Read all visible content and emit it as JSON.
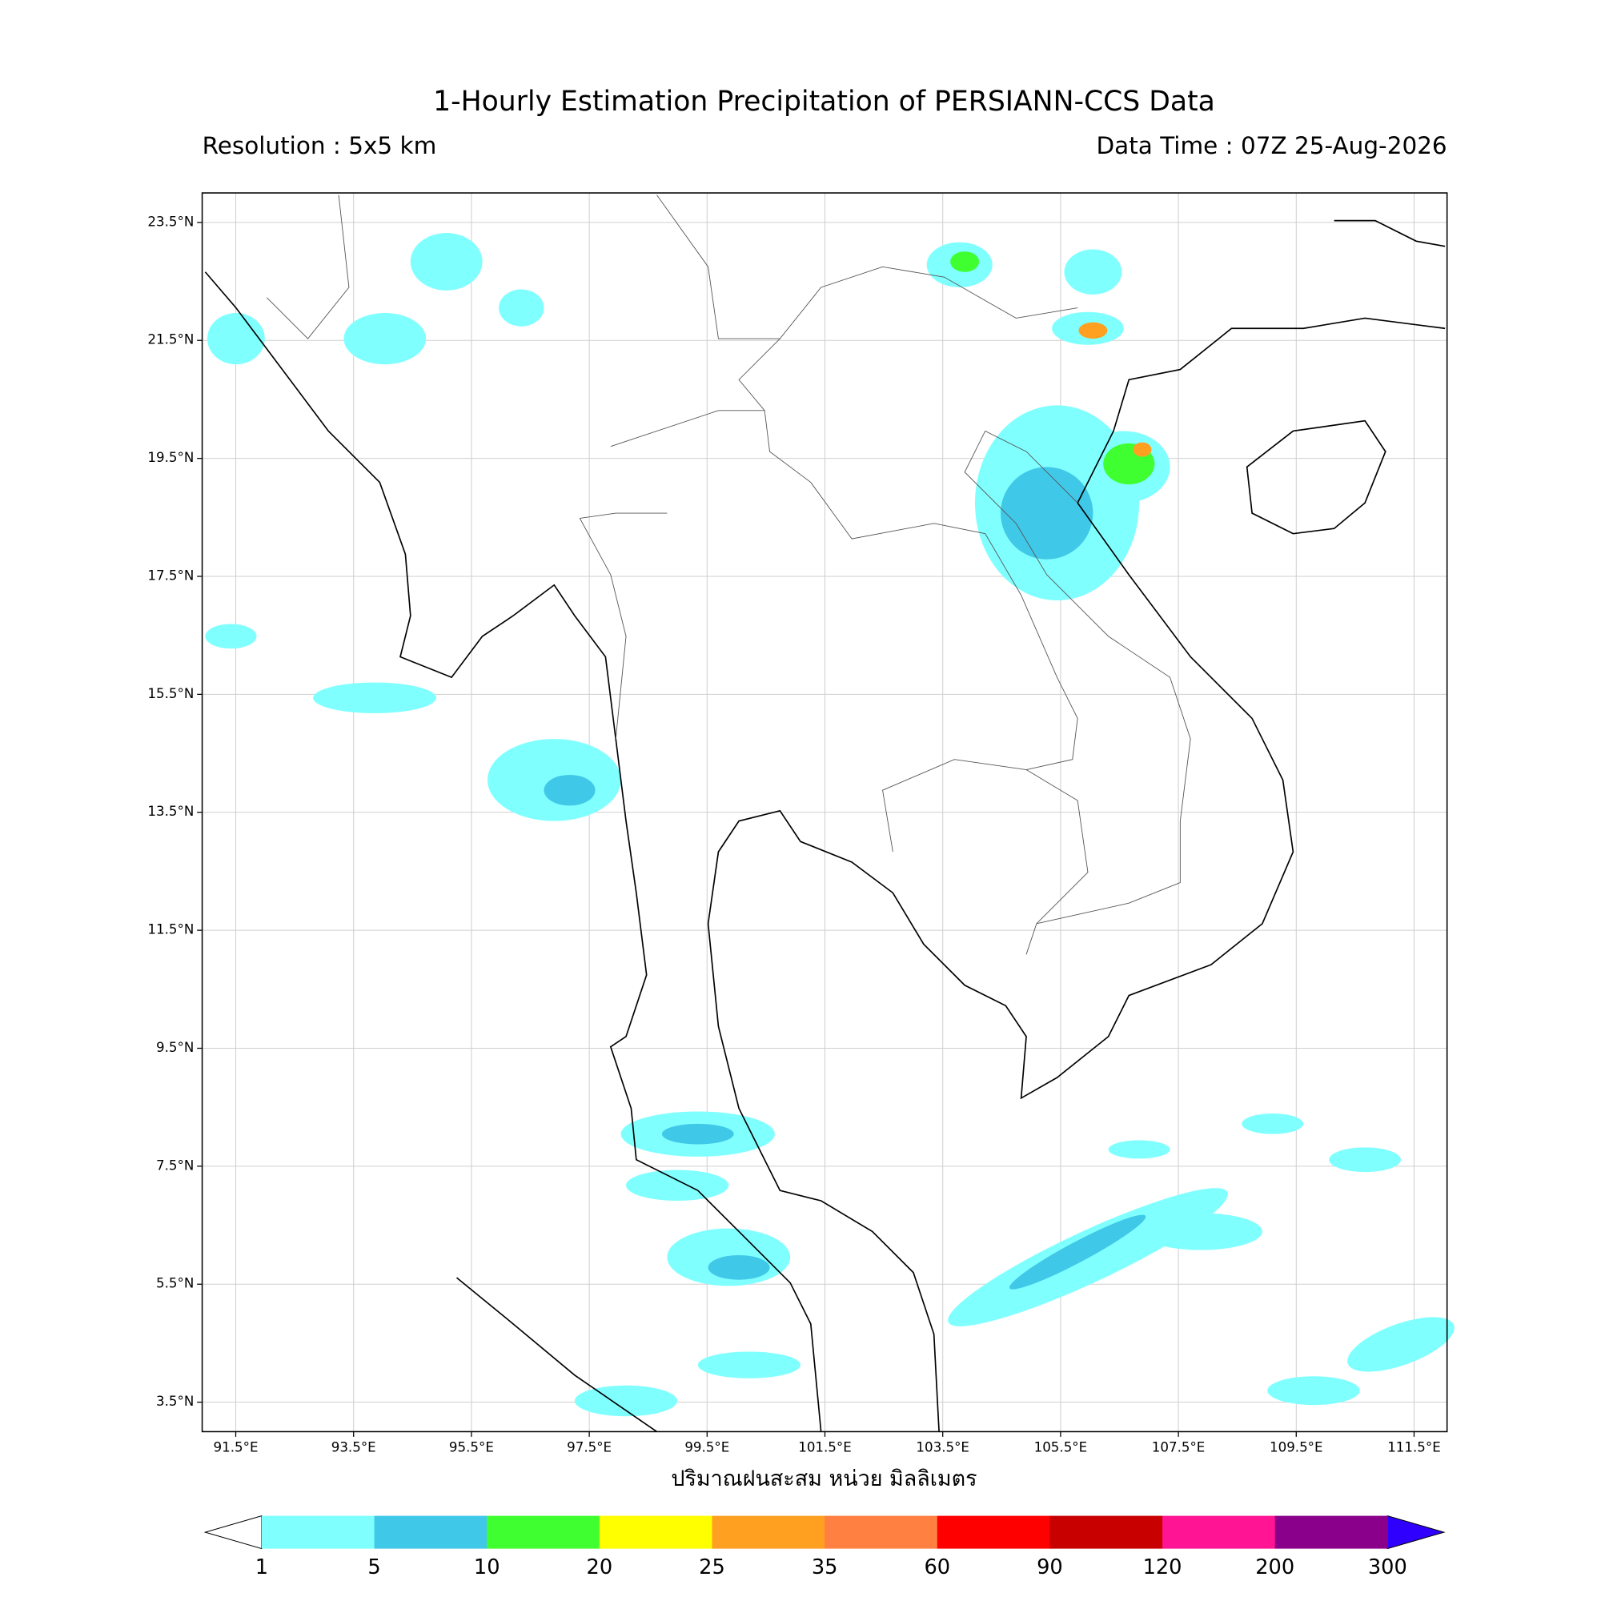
{
  "title": "1-Hourly Estimation Precipitation of PERSIANN-CCS Data",
  "resolution": "Resolution : 5x5 km",
  "data_time": "Data Time : 07Z 25-Aug-2026",
  "map": {
    "xlim": [
      90.93,
      112.06
    ],
    "ylim": [
      3.0,
      24.0
    ],
    "xticks": [
      {
        "value": 91.5,
        "label": "91.5°E"
      },
      {
        "value": 93.5,
        "label": "93.5°E"
      },
      {
        "value": 95.5,
        "label": "95.5°E"
      },
      {
        "value": 97.5,
        "label": "97.5°E"
      },
      {
        "value": 99.5,
        "label": "99.5°E"
      },
      {
        "value": 101.5,
        "label": "101.5°E"
      },
      {
        "value": 103.5,
        "label": "103.5°E"
      },
      {
        "value": 105.5,
        "label": "105.5°E"
      },
      {
        "value": 107.5,
        "label": "107.5°E"
      },
      {
        "value": 109.5,
        "label": "109.5°E"
      },
      {
        "value": 111.5,
        "label": "111.5°E"
      }
    ],
    "yticks": [
      {
        "value": 3.5,
        "label": "3.5°N"
      },
      {
        "value": 5.5,
        "label": "5.5°N"
      },
      {
        "value": 7.5,
        "label": "7.5°N"
      },
      {
        "value": 9.5,
        "label": "9.5°N"
      },
      {
        "value": 11.5,
        "label": "11.5°N"
      },
      {
        "value": 13.5,
        "label": "13.5°N"
      },
      {
        "value": 15.5,
        "label": "15.5°N"
      },
      {
        "value": 17.5,
        "label": "17.5°N"
      },
      {
        "value": 19.5,
        "label": "19.5°N"
      },
      {
        "value": 21.5,
        "label": "21.5°N"
      },
      {
        "value": 23.5,
        "label": "23.5°N"
      }
    ],
    "xlabel": "ปริมาณฝนสะสม หน่วย มิลลิเมตร",
    "grid": true
  },
  "colorbar": {
    "levels": [
      1,
      5,
      10,
      20,
      25,
      35,
      60,
      90,
      120,
      200,
      300
    ],
    "colors": [
      "#80ffff",
      "#40c8e8",
      "#40ff30",
      "#ffff00",
      "#ffa020",
      "#ff8040",
      "#ff0000",
      "#c80000",
      "#ff1493",
      "#8b008b"
    ],
    "under_color": "#ffffff",
    "over_color": "#3000ff"
  }
}
